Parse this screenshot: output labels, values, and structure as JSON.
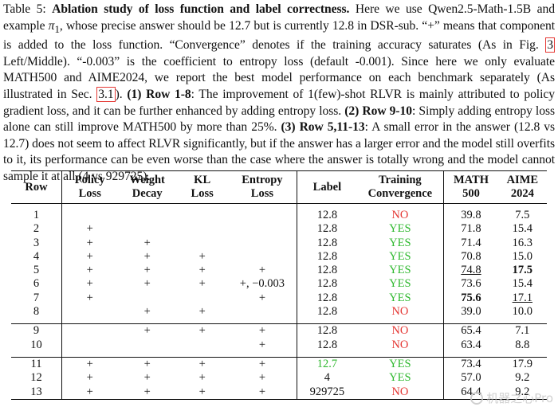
{
  "caption": {
    "prefix": "Table 5: ",
    "title": "Ablation study of loss function and label correctness.",
    "s1a": " Here we use Qwen2.5-Math-1.5B and example ",
    "pi": "π",
    "pi_sub": "1",
    "s1b": ", whose precise answer should be 12.7 but is currently 12.8 in DSR-sub. “+” means that component is added to the loss function. “Convergence” denotes if the training accuracy saturates (As in Fig. ",
    "fig_ref": "3",
    "s2": " Left/Middle). “-0.003” is the coefficient to entropy loss (default -0.001). Since here we only evaluate MATH500 and AIME2024, we report the best model performance on each benchmark separately (As illustrated in Sec. ",
    "sec_ref": "3.1",
    "s3": "). ",
    "b1": "(1) Row 1-8",
    "s4": ": The improvement of 1(few)-shot RLVR is mainly attributed to policy gradient loss, and it can be further enhanced by adding entropy loss. ",
    "b2": "(2) Row 9-10",
    "s5": ": Simply adding entropy loss alone can still improve MATH500 by more than 25%. ",
    "b3": "(3) Row 5,11-13",
    "s6": ": A small error in the answer (12.8 vs 12.7) does not seem to affect RLVR significantly, but if the answer has a larger error and the model still overfits to it, its performance can be even worse than the case where the answer is totally wrong and the model cannot sample it at all (4 vs 929725)."
  },
  "table": {
    "headers": {
      "row": "Row",
      "policy_1": "Policy",
      "policy_2": "Loss",
      "weight_1": "Weight",
      "weight_2": "Decay",
      "kl_1": "KL",
      "kl_2": "Loss",
      "entropy_1": "Entropy",
      "entropy_2": "Loss",
      "label": "Label",
      "conv_1": "Training",
      "conv_2": "Convergence",
      "math_1": "MATH",
      "math_2": "500",
      "aime_1": "AIME",
      "aime_2": "2024"
    },
    "rows": [
      {
        "row": "1",
        "policy": "",
        "weight": "",
        "kl": "",
        "entropy": "",
        "label": "12.8",
        "conv": "NO",
        "math": "39.8",
        "aime": "7.5"
      },
      {
        "row": "2",
        "policy": "+",
        "weight": "",
        "kl": "",
        "entropy": "",
        "label": "12.8",
        "conv": "YES",
        "math": "71.8",
        "aime": "15.4"
      },
      {
        "row": "3",
        "policy": "+",
        "weight": "+",
        "kl": "",
        "entropy": "",
        "label": "12.8",
        "conv": "YES",
        "math": "71.4",
        "aime": "16.3"
      },
      {
        "row": "4",
        "policy": "+",
        "weight": "+",
        "kl": "+",
        "entropy": "",
        "label": "12.8",
        "conv": "YES",
        "math": "70.8",
        "aime": "15.0"
      },
      {
        "row": "5",
        "policy": "+",
        "weight": "+",
        "kl": "+",
        "entropy": "+",
        "label": "12.8",
        "conv": "YES",
        "math": "74.8",
        "aime": "17.5"
      },
      {
        "row": "6",
        "policy": "+",
        "weight": "+",
        "kl": "+",
        "entropy": "+, −0.003",
        "label": "12.8",
        "conv": "YES",
        "math": "73.6",
        "aime": "15.4"
      },
      {
        "row": "7",
        "policy": "+",
        "weight": "",
        "kl": "",
        "entropy": "+",
        "label": "12.8",
        "conv": "YES",
        "math": "75.6",
        "aime": "17.1"
      },
      {
        "row": "8",
        "policy": "",
        "weight": "+",
        "kl": "+",
        "entropy": "",
        "label": "12.8",
        "conv": "NO",
        "math": "39.0",
        "aime": "10.0"
      },
      {
        "row": "9",
        "policy": "",
        "weight": "+",
        "kl": "+",
        "entropy": "+",
        "label": "12.8",
        "conv": "NO",
        "math": "65.4",
        "aime": "7.1"
      },
      {
        "row": "10",
        "policy": "",
        "weight": "",
        "kl": "",
        "entropy": "+",
        "label": "12.8",
        "conv": "NO",
        "math": "63.4",
        "aime": "8.8"
      },
      {
        "row": "11",
        "policy": "+",
        "weight": "+",
        "kl": "+",
        "entropy": "+",
        "label": "12.7",
        "conv": "YES",
        "math": "73.4",
        "aime": "17.9"
      },
      {
        "row": "12",
        "policy": "+",
        "weight": "+",
        "kl": "+",
        "entropy": "+",
        "label": "4",
        "conv": "YES",
        "math": "57.0",
        "aime": "9.2"
      },
      {
        "row": "13",
        "policy": "+",
        "weight": "+",
        "kl": "+",
        "entropy": "+",
        "label": "929725",
        "conv": "NO",
        "math": "64.4",
        "aime": "9.2"
      }
    ]
  },
  "colors": {
    "no": "#e53935",
    "yes": "#2eb82e",
    "ref_box": "#e53935"
  },
  "watermark": {
    "text": "机器之心Pro",
    "icon": "wechat-logo-icon"
  }
}
